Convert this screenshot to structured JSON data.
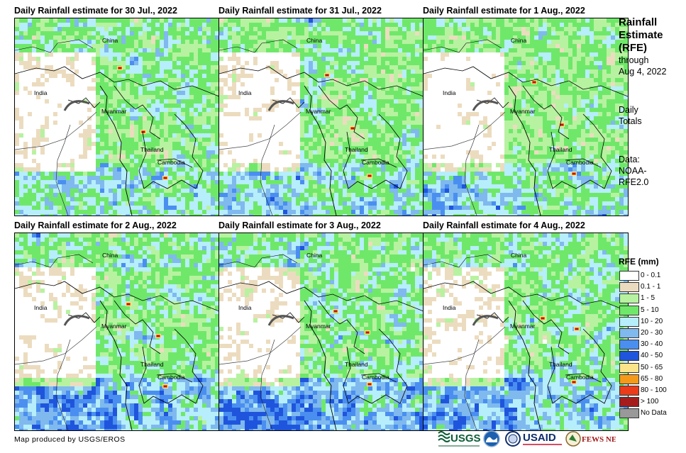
{
  "panels": [
    {
      "title": "Daily Rainfall estimate for 30 Jul., 2022",
      "seed": 11,
      "wet": 0.55,
      "heavy_south": 0.35
    },
    {
      "title": "Daily Rainfall estimate for 31 Jul., 2022",
      "seed": 23,
      "wet": 0.45,
      "heavy_south": 0.5
    },
    {
      "title": "Daily Rainfall estimate for 1 Aug., 2022",
      "seed": 37,
      "wet": 0.35,
      "heavy_south": 0.55
    },
    {
      "title": "Daily Rainfall estimate for 2 Aug., 2022",
      "seed": 41,
      "wet": 0.55,
      "heavy_south": 0.75
    },
    {
      "title": "Daily Rainfall estimate for 3 Aug., 2022",
      "seed": 53,
      "wet": 0.6,
      "heavy_south": 0.8
    },
    {
      "title": "Daily Rainfall estimate for 4 Aug., 2022",
      "seed": 67,
      "wet": 0.55,
      "heavy_south": 0.7
    }
  ],
  "map_labels": {
    "china": "China",
    "india": "India",
    "myanmar": "Myanmar",
    "thailand": "Thailand",
    "cambodia": "Cambodia"
  },
  "sidebar": {
    "title_1": "Rainfall",
    "title_2": "Estimate",
    "title_3": "(RFE)",
    "through": "through",
    "date": "Aug 4, 2022",
    "daily": "Daily",
    "totals": "Totals",
    "data_label": "Data:",
    "data_source_1": "NOAA-",
    "data_source_2": "RFE2.0"
  },
  "legend": {
    "title": "RFE (mm)",
    "items": [
      {
        "label": "0 - 0.1",
        "color": "#ffffff"
      },
      {
        "label": "0.1 - 1",
        "color": "#ecdcbf"
      },
      {
        "label": "1 - 5",
        "color": "#b7f2a0"
      },
      {
        "label": "5 - 10",
        "color": "#6fe86a"
      },
      {
        "label": "10 - 20",
        "color": "#b6eefb"
      },
      {
        "label": "20 - 30",
        "color": "#7fb9ee"
      },
      {
        "label": "30 - 40",
        "color": "#4a8ff0"
      },
      {
        "label": "40 - 50",
        "color": "#1f55dc"
      },
      {
        "label": "50 - 65",
        "color": "#fbe58a"
      },
      {
        "label": "65 - 80",
        "color": "#f59a18"
      },
      {
        "label": "80 - 100",
        "color": "#ec3b1a"
      },
      {
        "label": "> 100",
        "color": "#a51c1c"
      },
      {
        "label": "No Data",
        "color": "#999999"
      }
    ]
  },
  "credit": "Map produced by USGS/EROS",
  "logos": {
    "usgs": "USGS",
    "usaid": "USAID",
    "fewsnet": "FEWS NET"
  }
}
